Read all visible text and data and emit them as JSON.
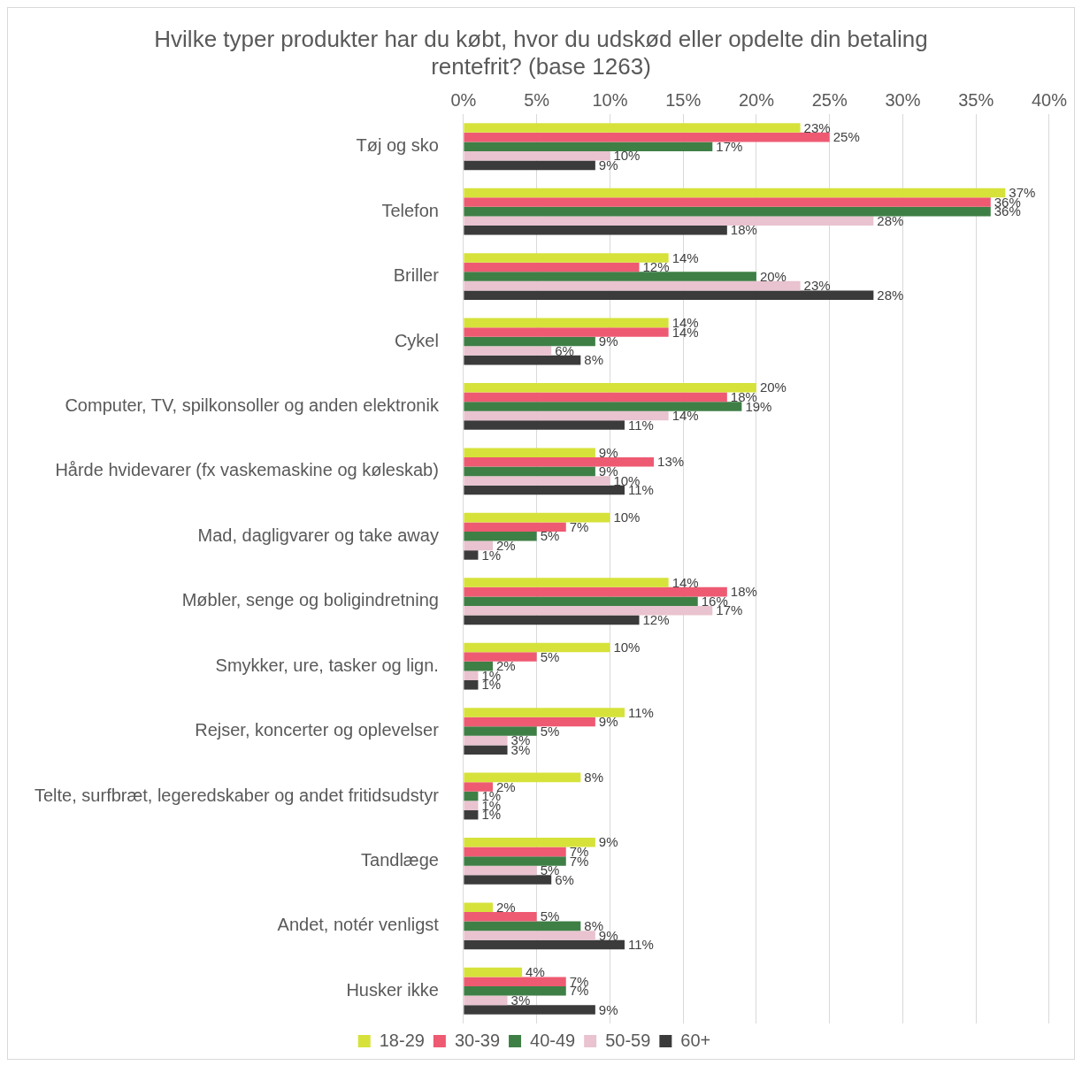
{
  "chart_data": {
    "type": "bar",
    "orientation": "horizontal",
    "title": "Hvilke typer produkter har du købt, hvor du udskød eller opdelte din betaling rentefrit? (base 1263)",
    "categories": [
      "Tøj og sko",
      "Telefon",
      "Briller",
      "Cykel",
      "Computer, TV, spilkonsoller og anden elektronik",
      "Hårde hvidevarer (fx vaskemaskine og køleskab)",
      "Mad, dagligvarer og take away",
      "Møbler, senge og boligindretning",
      "Smykker, ure, tasker og lign.",
      "Rejser, koncerter og oplevelser",
      "Telte, surfbræt, legeredskaber og andet fritidsudstyr",
      "Tandlæge",
      "Andet, notér venligst",
      "Husker ikke"
    ],
    "series": [
      {
        "name": "18-29",
        "color": "#d6e23a",
        "values": [
          23,
          37,
          14,
          14,
          20,
          9,
          10,
          14,
          10,
          11,
          8,
          9,
          2,
          4
        ],
        "value_labels": [
          "23%",
          "37%",
          "14%",
          "14%",
          "20%",
          "9%",
          "10%",
          "14%",
          "10%",
          "11%",
          "8%",
          "9%",
          "2%",
          "4%"
        ]
      },
      {
        "name": "30-39",
        "color": "#ee5a72",
        "values": [
          25,
          36,
          12,
          14,
          18,
          13,
          7,
          18,
          5,
          9,
          2,
          7,
          5,
          7
        ],
        "value_labels": [
          "25%",
          "36%",
          "12%",
          "14%",
          "18%",
          "13%",
          "7%",
          "18%",
          "5%",
          "9%",
          "2%",
          "7%",
          "5%",
          "7%"
        ]
      },
      {
        "name": "40-49",
        "color": "#3e7f46",
        "values": [
          17,
          36,
          20,
          9,
          19,
          9,
          5,
          16,
          2,
          5,
          1,
          7,
          8,
          7
        ],
        "value_labels": [
          "17%",
          "36%",
          "20%",
          "9%",
          "19%",
          "9%",
          "5%",
          "16%",
          "2%",
          "5%",
          "1%",
          "7%",
          "8%",
          "7%"
        ]
      },
      {
        "name": "50-59",
        "color": "#e9c3cf",
        "values": [
          10,
          28,
          23,
          6,
          14,
          10,
          2,
          17,
          1,
          3,
          1,
          5,
          9,
          3
        ],
        "value_labels": [
          "10%",
          "28%",
          "23%",
          "6%",
          "14%",
          "10%",
          "2%",
          "17%",
          "1%",
          "3%",
          "1%",
          "5%",
          "9%",
          "3%"
        ]
      },
      {
        "name": "60+",
        "color": "#3b3b3b",
        "values": [
          9,
          18,
          28,
          8,
          11,
          11,
          1,
          12,
          1,
          3,
          1,
          6,
          11,
          9
        ],
        "value_labels": [
          "9%",
          "18%",
          "28%",
          "8%",
          "11%",
          "11%",
          "1%",
          "12%",
          "1%",
          "3%",
          "1%",
          "6%",
          "11%",
          "9%"
        ]
      }
    ],
    "xlim": [
      0,
      40
    ],
    "xticks": [
      {
        "value": 0,
        "label": "0%"
      },
      {
        "value": 5,
        "label": "5%"
      },
      {
        "value": 10,
        "label": "10%"
      },
      {
        "value": 15,
        "label": "15%"
      },
      {
        "value": 20,
        "label": "20%"
      },
      {
        "value": 25,
        "label": "25%"
      },
      {
        "value": 30,
        "label": "30%"
      },
      {
        "value": 35,
        "label": "35%"
      },
      {
        "value": 40,
        "label": "40%"
      }
    ],
    "grid": "x",
    "legend": "bottom"
  }
}
